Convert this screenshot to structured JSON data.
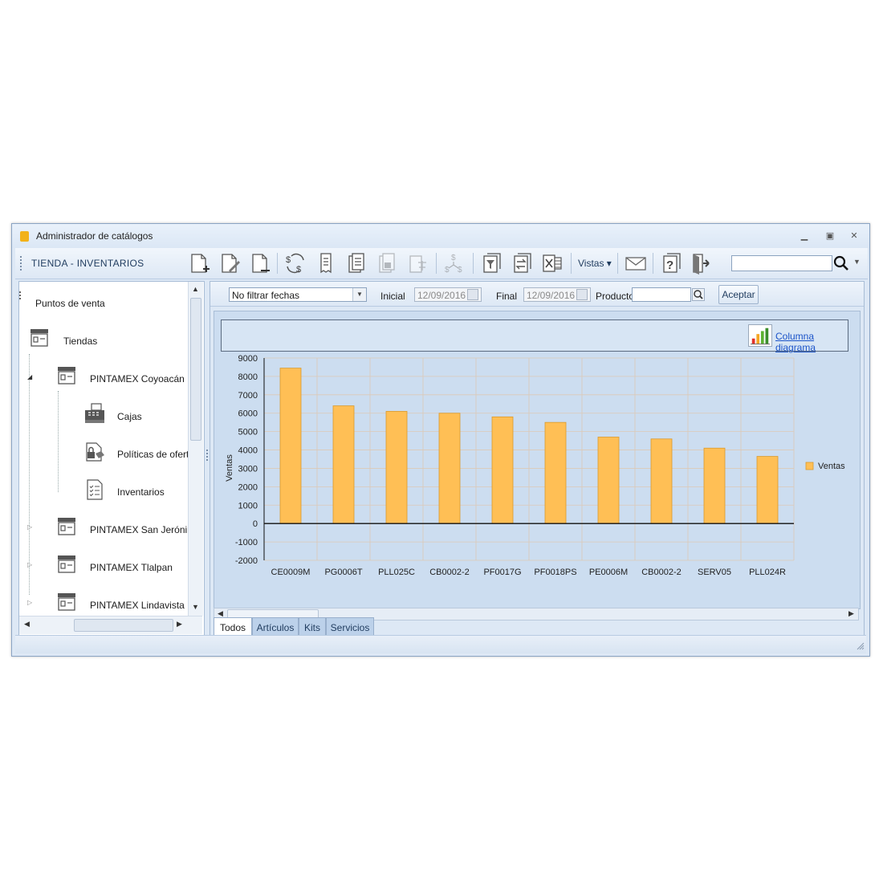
{
  "window": {
    "title": "Administrador de catálogos",
    "controls": [
      "minimize",
      "restore",
      "close"
    ]
  },
  "toolbar": {
    "title": "TIENDA - INVENTARIOS",
    "vistas_label": "Vistas ▾",
    "search_value": "",
    "icons": [
      "new-doc-icon",
      "edit-doc-icon",
      "remove-doc-icon",
      "price-exchange-icon",
      "receipt-icon",
      "clipboard-list-icon",
      "lock-copy-icon",
      "scale-copy-icon",
      "money-flow-icon",
      "filter-icon",
      "swap-icon",
      "excel-icon",
      "mail-icon",
      "help-icon",
      "exit-icon"
    ]
  },
  "tree": {
    "root": "Puntos de venta",
    "tiendas": "Tiendas",
    "stores": [
      {
        "label": "PINTAMEX Coyoacán",
        "expanded": true,
        "children": [
          "Cajas",
          "Políticas de oferta",
          "Inventarios"
        ]
      },
      {
        "label": "PINTAMEX San Jerónimo",
        "expanded": false
      },
      {
        "label": "PINTAMEX Tlalpan",
        "expanded": false
      },
      {
        "label": "PINTAMEX Lindavista",
        "expanded": false
      }
    ]
  },
  "filters": {
    "date_mode": "No filtrar fechas",
    "inicial_label": "Inicial",
    "inicial_value": "12/09/2016",
    "final_label": "Final",
    "final_value": "12/09/2016",
    "producto_label": "Producto",
    "producto_value": "",
    "aceptar_label": "Aceptar"
  },
  "chart_header": {
    "link_label": "Columna diagrama"
  },
  "chart_data": {
    "type": "bar",
    "title": "",
    "xlabel": "",
    "ylabel": "Ventas",
    "ylim": [
      -2000,
      9000
    ],
    "yticks": [
      9000,
      8000,
      7000,
      6000,
      5000,
      4000,
      3000,
      2000,
      1000,
      0,
      -1000,
      -2000
    ],
    "grid": true,
    "legend": "right",
    "categories": [
      "CE0009M",
      "PG0006T",
      "PLL025C",
      "CB0002-2",
      "PF0017G",
      "PF0018PS",
      "PE0006M",
      "CB0002-2",
      "SERV05",
      "PLL024R"
    ],
    "series": [
      {
        "name": "Ventas",
        "color": "#ffbf55",
        "values": [
          8450,
          6400,
          6100,
          6000,
          5800,
          5500,
          4700,
          4600,
          4100,
          3650
        ]
      }
    ]
  },
  "tabs": [
    "Todos",
    "Artículos",
    "Kits",
    "Servicios"
  ],
  "active_tab": "Todos"
}
